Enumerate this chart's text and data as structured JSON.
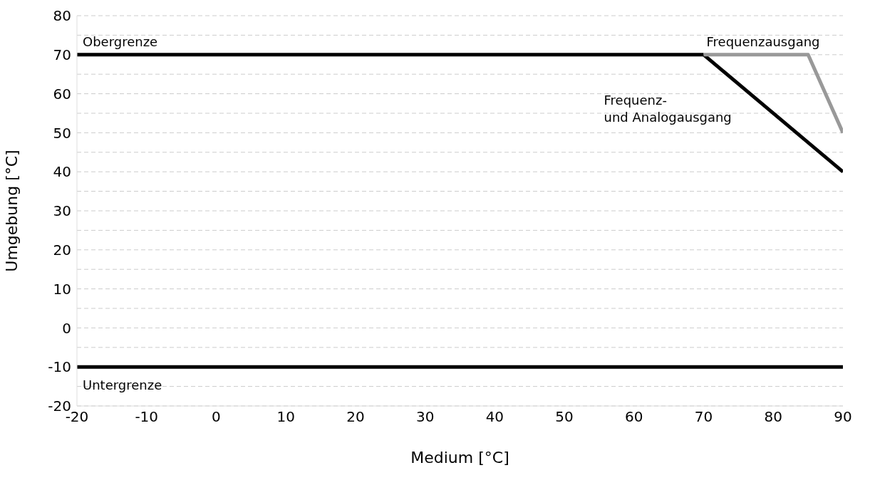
{
  "chart_data": {
    "type": "line",
    "xlabel": "Medium [°C]",
    "ylabel": "Umgebung [°C]",
    "xlim": [
      -20,
      90
    ],
    "xticks": [
      -20,
      -10,
      0,
      10,
      20,
      30,
      40,
      50,
      60,
      70,
      80,
      90
    ],
    "ylim": [
      -20,
      80
    ],
    "yticks": [
      -20,
      {
        "value": -15,
        "label": null
      },
      -10,
      {
        "value": -5,
        "label": null
      },
      0,
      {
        "value": 5,
        "label": null
      },
      10,
      {
        "value": 15,
        "label": null
      },
      20,
      {
        "value": 25,
        "label": null
      },
      30,
      {
        "value": 35,
        "label": null
      },
      40,
      {
        "value": 45,
        "label": null
      },
      50,
      {
        "value": 55,
        "label": null
      },
      60,
      {
        "value": 65,
        "label": null
      },
      70,
      {
        "value": 75,
        "label": null
      },
      80
    ],
    "grid": "y",
    "legend": false,
    "marker": "none",
    "line_style": "solid",
    "series": [
      {
        "name": "Obergrenze",
        "color": "#000000",
        "x": [
          -20,
          70
        ],
        "values": [
          70,
          70
        ]
      },
      {
        "name": "Frequenz-\nund Analogausgang",
        "color": "#000000",
        "x": [
          70,
          90
        ],
        "values": [
          70,
          40
        ]
      },
      {
        "name": "Frequenzausgang",
        "color": "#999999",
        "x": [
          70,
          85,
          90
        ],
        "values": [
          70,
          70,
          50
        ]
      },
      {
        "name": "Untergrenze",
        "color": "#000000",
        "x": [
          -20,
          90
        ],
        "values": [
          -10,
          -10
        ]
      }
    ]
  }
}
